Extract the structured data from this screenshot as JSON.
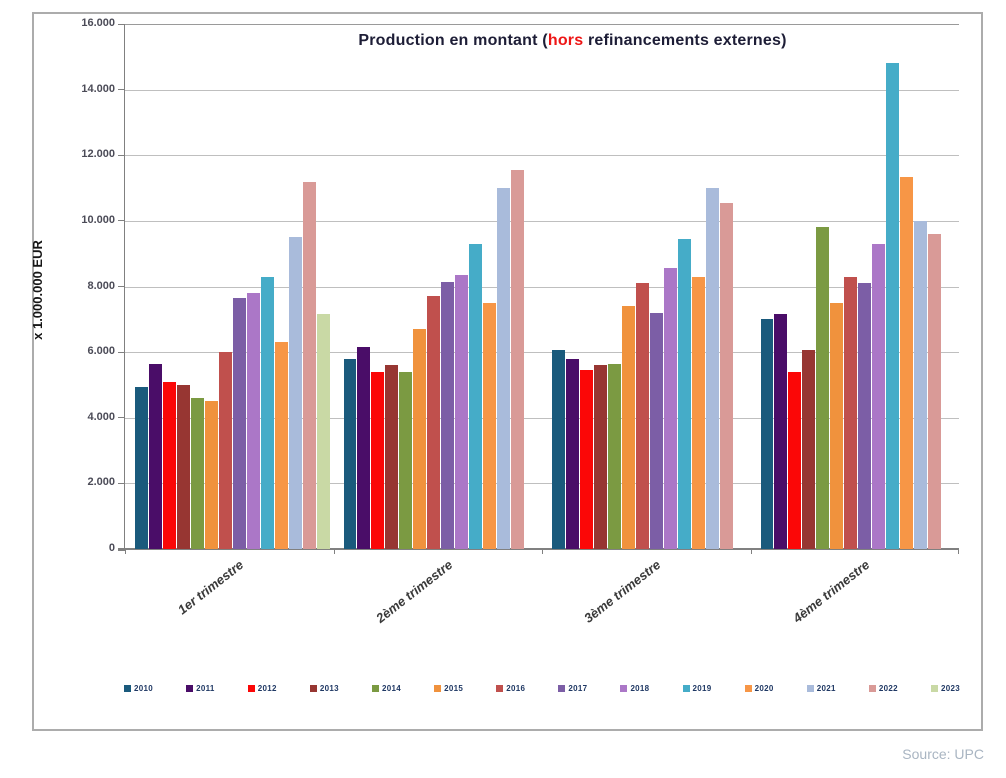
{
  "header": {
    "title_part1": "Production en montant (",
    "title_highlight": "hors",
    "title_part2": " refinancements externes)",
    "highlight_color": "#ee1616"
  },
  "footer": {
    "source": "Source: UPC"
  },
  "chart_data": {
    "type": "bar",
    "title": "Production en montant (hors refinancements externes)",
    "ylabel": "x 1.000.000  EUR",
    "xlabel": "",
    "ylim": [
      0,
      16000
    ],
    "ytick_step": 2000,
    "yticks": [
      "0",
      "2.000",
      "4.000",
      "6.000",
      "8.000",
      "10.000",
      "12.000",
      "14.000",
      "16.000"
    ],
    "grid": true,
    "legend_position": "bottom",
    "categories": [
      "1er trimestre",
      "2ème trimestre",
      "3ème trimestre",
      "4ème trimestre"
    ],
    "series": [
      {
        "name": "2010",
        "color": "#1A5A7C",
        "values": [
          4950,
          5800,
          6050,
          7000
        ]
      },
      {
        "name": "2011",
        "color": "#4A0D68",
        "values": [
          5650,
          6150,
          5800,
          7150
        ]
      },
      {
        "name": "2012",
        "color": "#FB0707",
        "values": [
          5100,
          5400,
          5450,
          5400
        ]
      },
      {
        "name": "2013",
        "color": "#973632",
        "values": [
          5000,
          5600,
          5600,
          6050
        ]
      },
      {
        "name": "2014",
        "color": "#7B9A42",
        "values": [
          4600,
          5400,
          5650,
          9800
        ]
      },
      {
        "name": "2015",
        "color": "#F0923D",
        "values": [
          4500,
          6700,
          7400,
          7500
        ]
      },
      {
        "name": "2016",
        "color": "#C0504D",
        "values": [
          6000,
          7700,
          8100,
          8300
        ]
      },
      {
        "name": "2017",
        "color": "#7C5EA6",
        "values": [
          7650,
          8150,
          7200,
          8100
        ]
      },
      {
        "name": "2018",
        "color": "#AB77C7",
        "values": [
          7800,
          8350,
          8550,
          9300
        ]
      },
      {
        "name": "2019",
        "color": "#45ACC8",
        "values": [
          8300,
          9300,
          9450,
          14800
        ]
      },
      {
        "name": "2020",
        "color": "#F79646",
        "values": [
          6300,
          7500,
          8300,
          11350
        ]
      },
      {
        "name": "2021",
        "color": "#A9BBDB",
        "values": [
          9500,
          11000,
          11000,
          10000
        ]
      },
      {
        "name": "2022",
        "color": "#D99A97",
        "values": [
          11200,
          11550,
          10550,
          9600
        ]
      },
      {
        "name": "2023",
        "color": "#C9D9A5",
        "values": [
          7150,
          null,
          null,
          null
        ]
      }
    ]
  }
}
